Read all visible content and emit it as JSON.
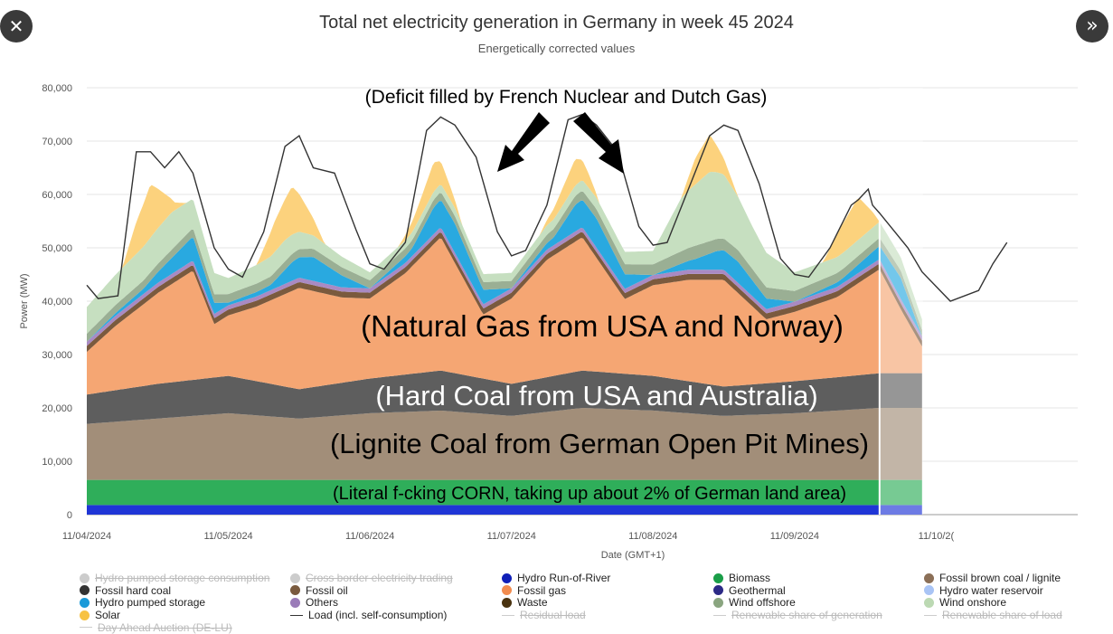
{
  "nav": {
    "close_glyph": "✕",
    "next_glyph": "»"
  },
  "chart_data": {
    "type": "area",
    "title": "Total net electricity generation in Germany in week 45 2024",
    "subtitle": "Energetically corrected values",
    "ylabel": "Power (MW)",
    "xlabel": "Date (GMT+1)",
    "ylim": [
      0,
      80000
    ],
    "yticks": [
      0,
      10000,
      20000,
      30000,
      40000,
      50000,
      60000,
      70000,
      80000
    ],
    "ytick_labels": [
      "0",
      "10,000",
      "20,000",
      "30,000",
      "40,000",
      "50,000",
      "60,000",
      "70,000",
      "80,000"
    ],
    "x_days": [
      0,
      7
    ],
    "x_ticks": [
      0,
      1,
      2,
      3,
      4,
      5,
      6
    ],
    "x_tick_labels": [
      "11/04/2024",
      "11/05/2024",
      "11/06/2024",
      "11/07/2024",
      "11/08/2024",
      "11/09/2024",
      "11/10/2("
    ],
    "forecast_start_day": 5.6,
    "grid": true,
    "series": [
      {
        "name": "Hydro Run-of-River",
        "color": "#1f35d6",
        "x": [
          0,
          1,
          2,
          3,
          4,
          5,
          5.6,
          5.9
        ],
        "values": [
          1800,
          1800,
          1800,
          1800,
          1800,
          1800,
          1800,
          1800
        ]
      },
      {
        "name": "Biomass",
        "color": "#2fae5a",
        "x": [
          0,
          1,
          2,
          3,
          4,
          5,
          5.6,
          5.9
        ],
        "values": [
          4700,
          4700,
          4700,
          4700,
          4700,
          4700,
          4700,
          4700
        ]
      },
      {
        "name": "Fossil brown coal / lignite",
        "color": "#a28e79",
        "x": [
          0,
          0.5,
          1,
          1.5,
          2,
          2.5,
          3,
          3.5,
          4,
          4.5,
          5,
          5.6,
          5.9
        ],
        "values": [
          10500,
          11500,
          12500,
          11500,
          12500,
          13000,
          12000,
          13500,
          13000,
          12000,
          12500,
          13500,
          13500
        ]
      },
      {
        "name": "Fossil hard coal",
        "color": "#5e5e5e",
        "x": [
          0,
          0.5,
          1,
          1.5,
          2,
          2.5,
          3,
          3.5,
          4,
          4.5,
          5,
          5.6,
          5.9
        ],
        "values": [
          5500,
          6500,
          7000,
          5500,
          6500,
          7500,
          6000,
          7000,
          6500,
          5500,
          6000,
          6500,
          6500
        ]
      },
      {
        "name": "Fossil gas",
        "color": "#f5a673",
        "x": [
          0,
          0.2,
          0.5,
          0.75,
          0.9,
          1.2,
          1.5,
          1.8,
          2,
          2.25,
          2.5,
          2.8,
          3,
          3.25,
          3.5,
          3.8,
          4,
          4.25,
          4.5,
          4.8,
          5,
          5.3,
          5.6,
          5.75,
          5.9
        ],
        "values": [
          8000,
          12000,
          17000,
          20500,
          10000,
          14000,
          19000,
          16000,
          15000,
          19000,
          25000,
          12000,
          16000,
          22000,
          25000,
          14000,
          17000,
          19000,
          20000,
          12000,
          13000,
          15000,
          19500,
          12000,
          5000
        ]
      },
      {
        "name": "Fossil oil",
        "color": "#7a5a3e",
        "x": [
          0,
          2,
          4,
          5.6,
          5.9
        ],
        "values": [
          1100,
          1100,
          1100,
          1100,
          1100
        ]
      },
      {
        "name": "Others",
        "color": "#a98ac3",
        "x": [
          0,
          2,
          4,
          5.6,
          5.9
        ],
        "values": [
          800,
          800,
          800,
          800,
          800
        ]
      },
      {
        "name": "Hydro pumped storage",
        "color": "#29a9e0",
        "x": [
          0,
          0.4,
          0.6,
          0.75,
          1,
          1.3,
          1.45,
          1.6,
          2,
          2.3,
          2.45,
          2.6,
          3,
          3.3,
          3.45,
          3.6,
          4,
          4.3,
          4.45,
          4.6,
          5,
          5.35,
          5.6,
          5.75,
          5.9
        ],
        "values": [
          0,
          1000,
          3000,
          4500,
          500,
          1000,
          3500,
          4500,
          0,
          1500,
          5000,
          5500,
          0,
          1500,
          5000,
          5500,
          0,
          2000,
          3500,
          4000,
          0,
          1000,
          2500,
          4000,
          0
        ]
      },
      {
        "name": "Wind offshore",
        "color": "#9aaf94",
        "x": [
          0,
          1,
          2,
          3,
          4,
          4.3,
          4.5,
          5,
          5.6,
          5.9
        ],
        "values": [
          1500,
          1600,
          1500,
          1400,
          2000,
          2500,
          2200,
          2000,
          1500,
          1200
        ]
      },
      {
        "name": "Wind onshore",
        "color": "#c6dfc0",
        "x": [
          0,
          0.3,
          0.6,
          0.8,
          1,
          1.4,
          1.6,
          2,
          2.5,
          3,
          3.5,
          4,
          4.2,
          4.4,
          4.5,
          4.7,
          5,
          5.3,
          5.6,
          5.9
        ],
        "values": [
          5000,
          6000,
          7000,
          5000,
          3000,
          4000,
          2500,
          1500,
          1500,
          1500,
          2000,
          2500,
          10000,
          13000,
          12000,
          8000,
          3500,
          3000,
          3000,
          2000
        ]
      },
      {
        "name": "Solar",
        "color": "#fcd27d",
        "x": [
          0,
          0.25,
          0.35,
          0.45,
          0.55,
          0.62,
          0.7,
          0.95,
          1.2,
          1.32,
          1.45,
          1.58,
          1.68,
          1.95,
          2.2,
          2.35,
          2.45,
          2.55,
          2.65,
          2.95,
          3.2,
          3.35,
          3.45,
          3.55,
          3.62,
          3.95,
          4.2,
          4.3,
          4.4,
          4.5,
          4.6,
          4.95,
          5.2,
          5.32,
          5.45,
          5.55,
          5.6,
          5.9
        ],
        "values": [
          0,
          0,
          6000,
          10000,
          5000,
          1500,
          0,
          0,
          0,
          5500,
          9000,
          4000,
          0,
          0,
          0,
          3000,
          5500,
          3000,
          0,
          0,
          0,
          3000,
          5000,
          2500,
          0,
          0,
          0,
          5000,
          7000,
          3000,
          0,
          0,
          0,
          5000,
          8000,
          3000,
          0,
          0
        ]
      }
    ],
    "load": {
      "name": "Load (incl. self-consumption)",
      "color": "#333333",
      "x": [
        0,
        0.08,
        0.22,
        0.35,
        0.45,
        0.55,
        0.65,
        0.75,
        0.9,
        1.0,
        1.1,
        1.25,
        1.4,
        1.5,
        1.6,
        1.75,
        1.9,
        2.0,
        2.1,
        2.25,
        2.4,
        2.5,
        2.6,
        2.75,
        2.9,
        3.0,
        3.1,
        3.25,
        3.4,
        3.5,
        3.6,
        3.75,
        3.9,
        4.0,
        4.1,
        4.25,
        4.4,
        4.5,
        4.6,
        4.75,
        4.9,
        5.0,
        5.1,
        5.25,
        5.4,
        5.45,
        5.52,
        5.55,
        5.6,
        5.8,
        5.9,
        6.1,
        6.3,
        6.4,
        6.5
      ],
      "values": [
        43000,
        40500,
        41000,
        68000,
        68000,
        65000,
        68000,
        64000,
        50000,
        46000,
        44500,
        53000,
        69000,
        71000,
        65000,
        64000,
        53500,
        47000,
        46000,
        51000,
        72000,
        74500,
        73000,
        67000,
        53000,
        48500,
        49500,
        58000,
        74000,
        75000,
        73000,
        68000,
        54000,
        50500,
        51000,
        61000,
        71000,
        73000,
        72000,
        62000,
        48000,
        45000,
        44500,
        50000,
        58000,
        59000,
        61000,
        58000,
        56500,
        50000,
        45500,
        40000,
        42000,
        47000,
        51000
      ]
    },
    "annotations": [
      {
        "text": "(Deficit filled by French Nuclear and Dutch Gas)"
      },
      {
        "text": "(Natural Gas from USA and Norway)"
      },
      {
        "text": "(Hard Coal from USA and Australia)"
      },
      {
        "text": "(Lignite Coal from German Open Pit Mines)"
      },
      {
        "text": "(Literal f-cking CORN, taking up about 2% of German land area)"
      }
    ],
    "legend": [
      {
        "label": "Hydro pumped storage consumption",
        "color": "#bdbdbd",
        "marker": "dot",
        "enabled": false
      },
      {
        "label": "Cross border electricity trading",
        "color": "#cccccc",
        "marker": "dot",
        "enabled": false
      },
      {
        "label": "Hydro Run-of-River",
        "color": "#1020b8",
        "marker": "dot",
        "enabled": true
      },
      {
        "label": "Biomass",
        "color": "#1a9e48",
        "marker": "dot",
        "enabled": true
      },
      {
        "label": "Fossil brown coal / lignite",
        "color": "#8b6f57",
        "marker": "dot",
        "enabled": true
      },
      {
        "label": "Fossil hard coal",
        "color": "#333333",
        "marker": "dot",
        "enabled": true
      },
      {
        "label": "Fossil oil",
        "color": "#7a5a3e",
        "marker": "dot",
        "enabled": true
      },
      {
        "label": "Fossil gas",
        "color": "#f28c4f",
        "marker": "dot",
        "enabled": true
      },
      {
        "label": "Geothermal",
        "color": "#2c2a86",
        "marker": "dot",
        "enabled": true
      },
      {
        "label": "Hydro water reservoir",
        "color": "#a9c4f5",
        "marker": "dot",
        "enabled": true
      },
      {
        "label": "Hydro pumped storage",
        "color": "#1a9ad9",
        "marker": "dot",
        "enabled": true
      },
      {
        "label": "Others",
        "color": "#9a7bb8",
        "marker": "dot",
        "enabled": true
      },
      {
        "label": "Waste",
        "color": "#4a3310",
        "marker": "dot",
        "enabled": true
      },
      {
        "label": "Wind offshore",
        "color": "#8aa580",
        "marker": "dot",
        "enabled": true
      },
      {
        "label": "Wind onshore",
        "color": "#bcd9b3",
        "marker": "dot",
        "enabled": true
      },
      {
        "label": "Solar",
        "color": "#f7c243",
        "marker": "dot",
        "enabled": true
      },
      {
        "label": "Load (incl. self-consumption)",
        "color": "#333333",
        "marker": "line",
        "enabled": true
      },
      {
        "label": "Residual load",
        "color": "#cccccc",
        "marker": "line",
        "enabled": false
      },
      {
        "label": "Renewable share of generation",
        "color": "#cccccc",
        "marker": "line",
        "enabled": false
      },
      {
        "label": "Renewable share of load",
        "color": "#cccccc",
        "marker": "line",
        "enabled": false
      },
      {
        "label": "Day Ahead Auction (DE-LU)",
        "color": "#cccccc",
        "marker": "line",
        "enabled": false
      }
    ]
  }
}
